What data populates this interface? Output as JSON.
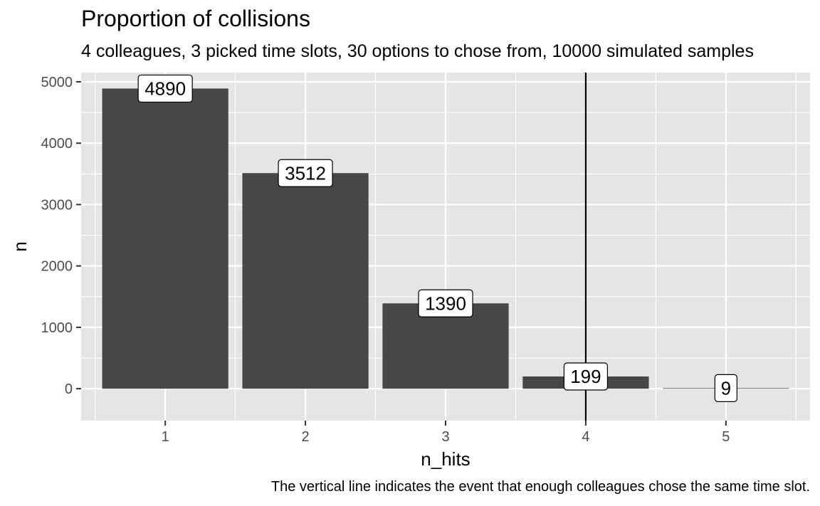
{
  "chart_data": {
    "type": "bar",
    "title": "Proportion of collisions",
    "subtitle": "4 colleagues, 3 picked time slots, 30 options to chose from, 10000 simulated samples",
    "caption": "The vertical line indicates the event that enough colleagues chose the same time slot.",
    "xlabel": "n_hits",
    "ylabel": "n",
    "categories": [
      "1",
      "2",
      "3",
      "4",
      "5"
    ],
    "values": [
      4890,
      3512,
      1390,
      199,
      9
    ],
    "data_labels": [
      "4890",
      "3512",
      "1390",
      "199",
      "9"
    ],
    "ylim": [
      -520,
      5150
    ],
    "y_ticks": [
      0,
      1000,
      2000,
      3000,
      4000,
      5000
    ],
    "y_tick_labels": [
      "0",
      "1000",
      "2000",
      "3000",
      "4000",
      "5000"
    ],
    "vline_at_category": "4",
    "grid": true,
    "bar_color": "#474747",
    "panel_background": "#E5E5E5",
    "grid_color": "#FFFFFF",
    "vline_color": "#000000"
  }
}
